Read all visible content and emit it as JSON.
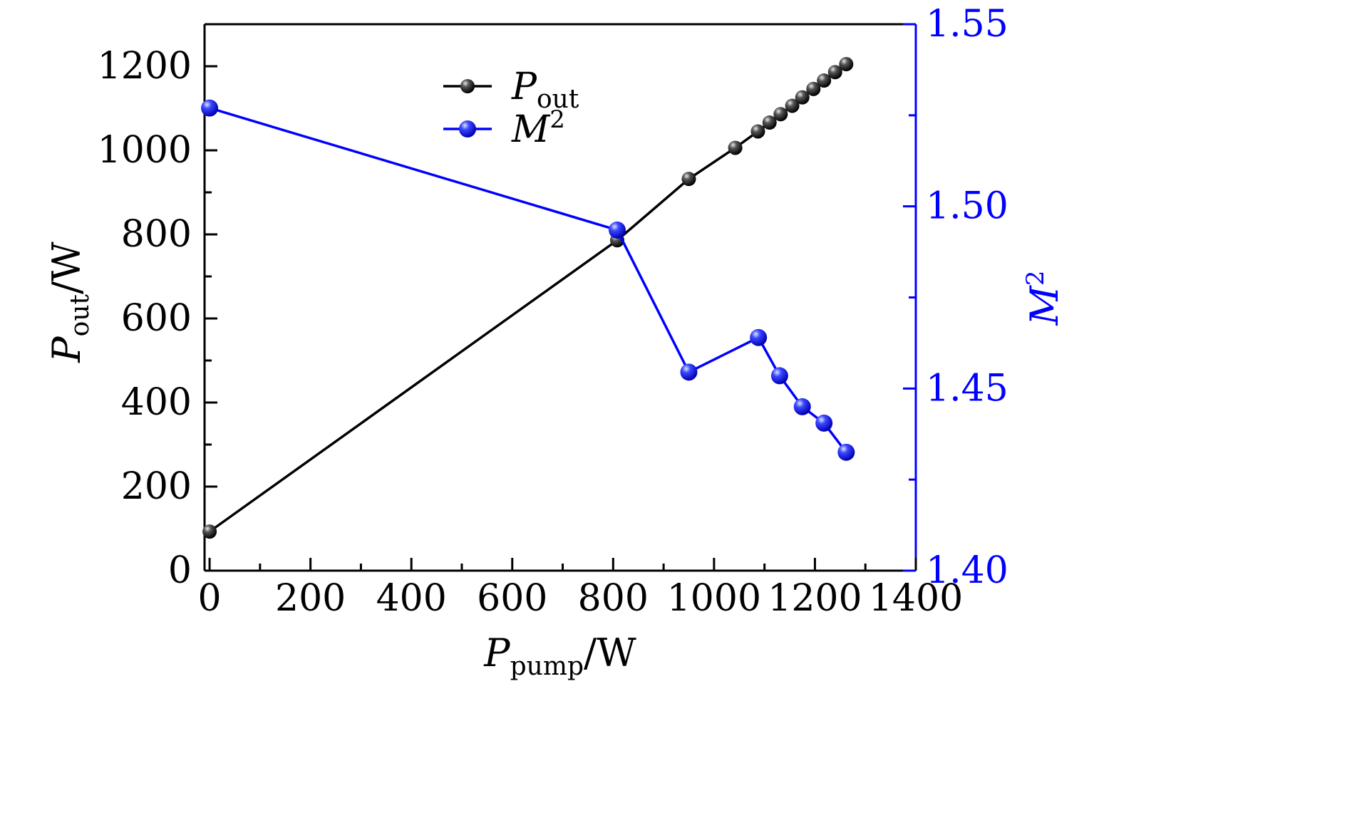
{
  "chart_data": {
    "type": "line",
    "title": "",
    "xlabel": {
      "main": "P",
      "sub": "pump",
      "unit": "/W"
    },
    "ylabel": {
      "main": "P",
      "sub": "out",
      "unit": "/W"
    },
    "y2label": {
      "main": "M",
      "sup": "2"
    },
    "xlim": [
      -10,
      1400
    ],
    "ylim": [
      0,
      1300
    ],
    "y2lim": [
      1.4,
      1.55
    ],
    "xticks": [
      0,
      200,
      400,
      600,
      800,
      1000,
      1200,
      1400
    ],
    "xtick_labels": [
      "0",
      "200",
      "400",
      "600",
      "800",
      "1000",
      "1200",
      "1400"
    ],
    "yticks": [
      0,
      200,
      400,
      600,
      800,
      1000,
      1200
    ],
    "ytick_labels": [
      "0",
      "200",
      "400",
      "600",
      "800",
      "1000",
      "1200"
    ],
    "y2ticks": [
      1.4,
      1.45,
      1.5,
      1.55
    ],
    "y2tick_labels": [
      "1.40",
      "1.45",
      "1.50",
      "1.55"
    ],
    "legend_position": "top-center",
    "grid": false,
    "series": [
      {
        "name": "P",
        "name_sub": "out",
        "axis": "left",
        "color": "#000000",
        "x": [
          0,
          808,
          950,
          1042,
          1087,
          1110,
          1132,
          1155,
          1175,
          1197,
          1218,
          1240,
          1262
        ],
        "y": [
          93,
          786,
          932,
          1006,
          1045,
          1066,
          1086,
          1106,
          1126,
          1146,
          1166,
          1186,
          1205
        ]
      },
      {
        "name": "M",
        "name_sup": "2",
        "axis": "right",
        "color": "#0000ff",
        "x": [
          0,
          808,
          950,
          1088,
          1130,
          1175,
          1218,
          1262
        ],
        "y": [
          1.527,
          1.4935,
          1.4545,
          1.464,
          1.4535,
          1.445,
          1.4405,
          1.4325
        ]
      }
    ]
  }
}
